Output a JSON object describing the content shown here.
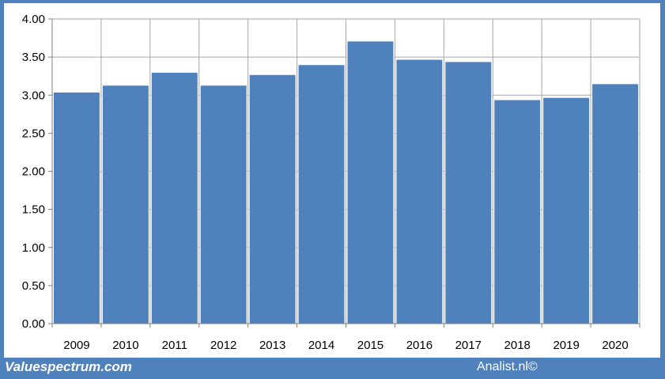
{
  "chart_data": {
    "type": "bar",
    "categories": [
      "2009",
      "2010",
      "2011",
      "2012",
      "2013",
      "2014",
      "2015",
      "2016",
      "2017",
      "2018",
      "2019",
      "2020"
    ],
    "values": [
      3.04,
      3.13,
      3.3,
      3.13,
      3.27,
      3.4,
      3.71,
      3.47,
      3.44,
      2.94,
      2.97,
      3.15
    ],
    "ylim": [
      0,
      4
    ],
    "yticks": [
      "0.00",
      "0.50",
      "1.00",
      "1.50",
      "2.00",
      "2.50",
      "3.00",
      "3.50",
      "4.00"
    ],
    "grid": true,
    "bar_color": "#4f81bd",
    "grid_color": "#a6a6a6"
  },
  "footer": {
    "source_left": "Valuespectrum.com",
    "source_right": "Analist.nl©"
  }
}
